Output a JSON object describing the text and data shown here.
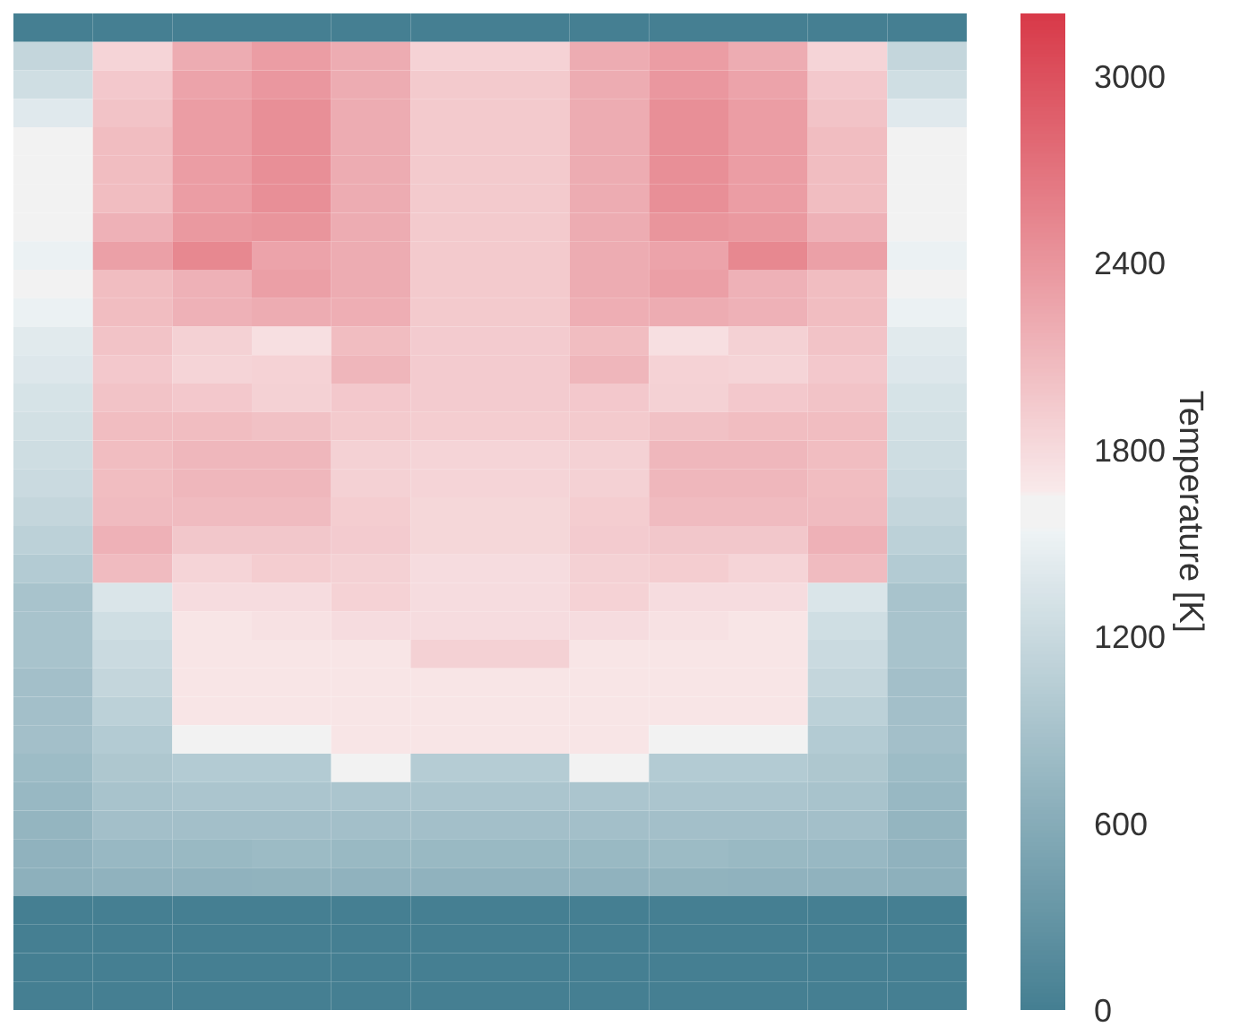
{
  "chart_data": {
    "type": "heatmap",
    "clabel": "Temperature [K]",
    "clim": [
      0,
      3200
    ],
    "cticks": [
      0,
      600,
      1200,
      1800,
      2400,
      3000
    ],
    "tick_labels": false,
    "grid": false,
    "categories": [
      null,
      null,
      null,
      null,
      null,
      null,
      null,
      null,
      null,
      null,
      null,
      null
    ],
    "y_categories": [
      null,
      null,
      null,
      null,
      null,
      null,
      null,
      null,
      null,
      null,
      null,
      null,
      null,
      null,
      null,
      null,
      null,
      null,
      null,
      null,
      null,
      null,
      null,
      null,
      null,
      null,
      null,
      null,
      null,
      null,
      null,
      null,
      null,
      null,
      null
    ],
    "cells": [
      [
        0,
        0,
        0,
        0,
        0,
        0,
        0,
        0,
        0,
        0,
        0,
        0
      ],
      [
        1150,
        1850,
        2200,
        2330,
        2200,
        1870,
        1870,
        2200,
        2330,
        2200,
        1850,
        1150
      ],
      [
        1250,
        1950,
        2280,
        2380,
        2200,
        1940,
        1940,
        2200,
        2380,
        2280,
        1950,
        1250
      ],
      [
        1400,
        2000,
        2330,
        2450,
        2200,
        1940,
        1940,
        2200,
        2450,
        2330,
        2000,
        1400
      ],
      [
        1600,
        2050,
        2330,
        2450,
        2200,
        1940,
        1940,
        2200,
        2450,
        2330,
        2050,
        1600
      ],
      [
        1600,
        2050,
        2330,
        2450,
        2200,
        1940,
        1940,
        2200,
        2450,
        2330,
        2050,
        1600
      ],
      [
        1600,
        2050,
        2330,
        2450,
        2200,
        1940,
        1940,
        2200,
        2450,
        2330,
        2050,
        1600
      ],
      [
        1600,
        2150,
        2370,
        2400,
        2200,
        1940,
        1940,
        2200,
        2400,
        2370,
        2150,
        1600
      ],
      [
        1500,
        2300,
        2520,
        2280,
        2200,
        1940,
        1940,
        2200,
        2280,
        2520,
        2300,
        1500
      ],
      [
        1600,
        2050,
        2150,
        2320,
        2200,
        1940,
        1940,
        2200,
        2320,
        2150,
        2050,
        1600
      ],
      [
        1500,
        2050,
        2150,
        2200,
        2180,
        1940,
        1940,
        2180,
        2200,
        2150,
        2050,
        1500
      ],
      [
        1420,
        2000,
        1880,
        1760,
        2050,
        1930,
        1930,
        2050,
        1760,
        1880,
        2000,
        1420
      ],
      [
        1380,
        1950,
        1850,
        1870,
        2120,
        1930,
        1930,
        2120,
        1870,
        1850,
        1950,
        1380
      ],
      [
        1320,
        2000,
        1950,
        1880,
        1950,
        1930,
        1930,
        1950,
        1880,
        1950,
        2000,
        1320
      ],
      [
        1280,
        2050,
        2050,
        2020,
        1940,
        1920,
        1920,
        1940,
        2020,
        2050,
        2050,
        1280
      ],
      [
        1240,
        2050,
        2100,
        2100,
        1880,
        1860,
        1860,
        1880,
        2100,
        2100,
        2050,
        1240
      ],
      [
        1200,
        2050,
        2100,
        2100,
        1880,
        1860,
        1860,
        1880,
        2100,
        2100,
        2050,
        1200
      ],
      [
        1150,
        2070,
        2070,
        2070,
        1920,
        1830,
        1830,
        1920,
        2070,
        2070,
        2070,
        1150
      ],
      [
        1080,
        2150,
        1970,
        1970,
        1930,
        1830,
        1830,
        1930,
        1970,
        1970,
        2150,
        1080
      ],
      [
        1000,
        2070,
        1850,
        1920,
        1880,
        1780,
        1780,
        1880,
        1920,
        1850,
        2070,
        1000
      ],
      [
        900,
        1350,
        1780,
        1780,
        1870,
        1780,
        1780,
        1870,
        1780,
        1780,
        1350,
        900
      ],
      [
        900,
        1250,
        1700,
        1740,
        1780,
        1780,
        1780,
        1780,
        1740,
        1700,
        1250,
        900
      ],
      [
        900,
        1200,
        1700,
        1700,
        1700,
        1880,
        1880,
        1700,
        1700,
        1700,
        1200,
        900
      ],
      [
        850,
        1150,
        1700,
        1700,
        1700,
        1700,
        1700,
        1700,
        1700,
        1700,
        1150,
        850
      ],
      [
        850,
        1080,
        1700,
        1700,
        1700,
        1700,
        1700,
        1700,
        1700,
        1700,
        1080,
        850
      ],
      [
        850,
        1000,
        1600,
        1600,
        1700,
        1700,
        1700,
        1700,
        1600,
        1600,
        1000,
        850
      ],
      [
        800,
        950,
        1000,
        1000,
        1600,
        1020,
        1020,
        1600,
        1000,
        1000,
        950,
        800
      ],
      [
        760,
        900,
        930,
        930,
        930,
        930,
        930,
        930,
        930,
        930,
        900,
        760
      ],
      [
        720,
        850,
        850,
        850,
        850,
        850,
        850,
        850,
        850,
        850,
        850,
        720
      ],
      [
        680,
        760,
        770,
        790,
        770,
        770,
        770,
        770,
        790,
        770,
        760,
        680
      ],
      [
        650,
        680,
        680,
        690,
        680,
        680,
        680,
        680,
        690,
        680,
        680,
        650
      ],
      [
        0,
        0,
        0,
        0,
        0,
        0,
        0,
        0,
        0,
        0,
        0,
        0
      ],
      [
        0,
        0,
        0,
        0,
        0,
        0,
        0,
        0,
        0,
        0,
        0,
        0
      ],
      [
        0,
        0,
        0,
        0,
        0,
        0,
        0,
        0,
        0,
        0,
        0,
        0
      ],
      [
        0,
        0,
        0,
        0,
        0,
        0,
        0,
        0,
        0,
        0,
        0,
        0
      ]
    ]
  }
}
